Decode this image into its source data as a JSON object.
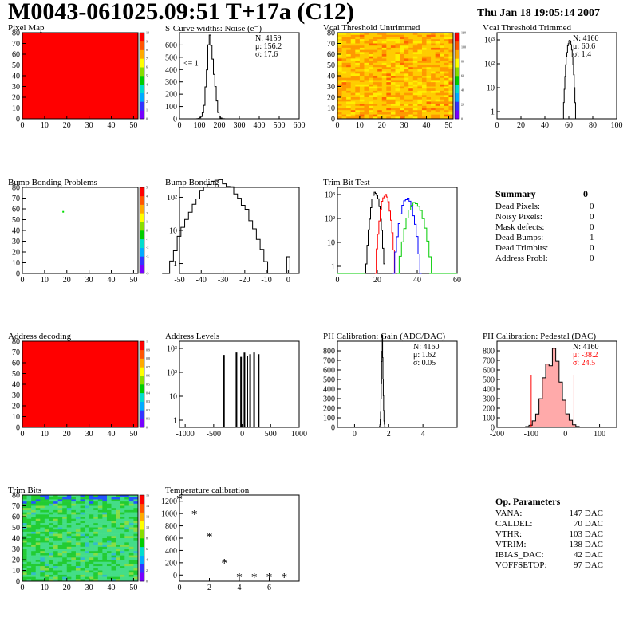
{
  "header": {
    "title": "M0043-061025.09:51 T+17a (C12)",
    "date": "Thu Jan 18 19:05:14 2007"
  },
  "colors": {
    "red": "#ff0000",
    "axis": "#000000",
    "green": "#00cc00",
    "blue": "#0000ff"
  },
  "chart_data": [
    {
      "id": "pixel-map",
      "type": "heatmap",
      "title": "Pixel Map",
      "xlim": [
        0,
        52
      ],
      "ylim": [
        0,
        80
      ],
      "xticks": [
        "0",
        "10",
        "20",
        "30",
        "40",
        "50"
      ],
      "yticks": [
        "0",
        "10",
        "20",
        "30",
        "40",
        "50",
        "60",
        "70",
        "80"
      ],
      "fill": "uniform",
      "value": 10,
      "zticks": [
        "0",
        "1",
        "2",
        "3",
        "4",
        "5",
        "6",
        "7",
        "8",
        "9",
        "10"
      ]
    },
    {
      "id": "s-curve",
      "type": "histogram",
      "title": "S-Curve widths: Noise (e⁻)",
      "xlim": [
        0,
        600
      ],
      "ylim": [
        0,
        700
      ],
      "xticks": [
        "0",
        "100",
        "200",
        "300",
        "400",
        "500",
        "600"
      ],
      "yticks": [
        "0",
        "100",
        "200",
        "300",
        "400",
        "500",
        "600"
      ],
      "stats": [
        "N: 4159",
        "μ: 156.2",
        "σ: 17.6"
      ],
      "annotation": "<= 1",
      "peak": {
        "center": 156,
        "sigma": 17.6,
        "height": 640
      }
    },
    {
      "id": "vcal-untrimmed",
      "type": "heatmap",
      "title": "Vcal Threshold Untrimmed",
      "xlim": [
        0,
        52
      ],
      "ylim": [
        0,
        80
      ],
      "xticks": [
        "0",
        "10",
        "20",
        "30",
        "40",
        "50"
      ],
      "yticks": [
        "0",
        "10",
        "20",
        "30",
        "40",
        "50",
        "60",
        "70",
        "80"
      ],
      "fill": "noisy-yellow-orange",
      "zticks": [
        "0",
        "20",
        "40",
        "60",
        "80",
        "100",
        "120"
      ]
    },
    {
      "id": "vcal-trimmed",
      "type": "histogram",
      "title": "Vcal Threshold Trimmed",
      "xlim": [
        0,
        100
      ],
      "log_y": true,
      "xticks": [
        "0",
        "20",
        "40",
        "60",
        "80",
        "100"
      ],
      "yticks": [
        "1",
        "10",
        "10²",
        "10³"
      ],
      "stats": [
        "N: 4160",
        "μ: 60.6",
        "σ: 1.4"
      ],
      "peak": {
        "center": 60.6,
        "sigma": 1.4,
        "height": 900
      }
    },
    {
      "id": "bump-problems",
      "type": "heatmap",
      "title": "Bump Bonding Problems",
      "xlim": [
        0,
        52
      ],
      "ylim": [
        0,
        80
      ],
      "xticks": [
        "0",
        "10",
        "20",
        "30",
        "40",
        "50"
      ],
      "yticks": [
        "0",
        "10",
        "20",
        "30",
        "40",
        "50",
        "60",
        "70",
        "80"
      ],
      "fill": "empty",
      "marker": [
        18,
        58
      ],
      "zticks": [
        "-5",
        "-4",
        "-3",
        "-2",
        "-1",
        "0",
        "1",
        "2",
        "3",
        "4",
        "5"
      ]
    },
    {
      "id": "bump-bonding",
      "type": "histogram",
      "title": "Bump Bonding",
      "xlim": [
        -50,
        5
      ],
      "log_y": true,
      "xticks": [
        "-50",
        "-40",
        "-30",
        "-20",
        "-10",
        "0"
      ],
      "yticks": [
        "1",
        "10",
        "10²"
      ],
      "peak": {
        "center": -32,
        "sigma": 6.5,
        "height": 300
      },
      "outlier": [
        0,
        1
      ]
    },
    {
      "id": "trim-bit-test",
      "type": "histogram",
      "title": "Trim Bit Test",
      "xlim": [
        0,
        60
      ],
      "log_y": true,
      "xticks": [
        "0",
        "20",
        "40",
        "60"
      ],
      "yticks": [
        "1",
        "10",
        "10²",
        "10³"
      ],
      "series": [
        {
          "center": 19,
          "sigma": 1.2,
          "height": 1300,
          "color": "#000000"
        },
        {
          "center": 24,
          "sigma": 1.3,
          "height": 1000,
          "color": "#ff0000"
        },
        {
          "center": 35,
          "sigma": 1.8,
          "height": 700,
          "color": "#0000ff"
        },
        {
          "center": 39,
          "sigma": 2.3,
          "height": 450,
          "color": "#00cc00"
        }
      ]
    },
    {
      "id": "address-decoding",
      "type": "heatmap",
      "title": "Address decoding",
      "xlim": [
        0,
        52
      ],
      "ylim": [
        0,
        80
      ],
      "xticks": [
        "0",
        "10",
        "20",
        "30",
        "40",
        "50"
      ],
      "yticks": [
        "0",
        "10",
        "20",
        "30",
        "40",
        "50",
        "60",
        "70",
        "80"
      ],
      "fill": "uniform",
      "value": 1,
      "zticks": [
        "0",
        "0.1",
        "0.2",
        "0.3",
        "0.4",
        "0.5",
        "0.6",
        "0.7",
        "0.8",
        "0.9",
        "1"
      ]
    },
    {
      "id": "address-levels",
      "type": "histogram",
      "title": "Address Levels",
      "xlim": [
        -1100,
        1000
      ],
      "log_y": true,
      "xticks": [
        "-1000",
        "-500",
        "0",
        "500",
        "1000"
      ],
      "yticks": [
        "1",
        "10",
        "10²",
        "10³"
      ],
      "spikes": [
        -320,
        -100,
        -20,
        40,
        90,
        140,
        210,
        290
      ],
      "spike_height": 600
    },
    {
      "id": "ph-gain",
      "type": "histogram",
      "title": "PH Calibration: Gain (ADC/DAC)",
      "xlim": [
        -1,
        6
      ],
      "ylim": [
        0,
        900
      ],
      "xticks": [
        "0",
        "2",
        "4"
      ],
      "yticks": [
        "0",
        "100",
        "200",
        "300",
        "400",
        "500",
        "600",
        "700",
        "800"
      ],
      "stats": [
        "N: 4160",
        "μ: 1.62",
        "σ: 0.05"
      ],
      "peak": {
        "center": 1.62,
        "sigma": 0.05,
        "height": 860
      }
    },
    {
      "id": "ph-pedestal",
      "type": "histogram",
      "title": "PH Calibration: Pedestal (DAC)",
      "xlim": [
        -200,
        150
      ],
      "ylim": [
        0,
        900
      ],
      "xticks": [
        "-200",
        "-100",
        "0",
        "100"
      ],
      "yticks": [
        "0",
        "100",
        "200",
        "300",
        "400",
        "500",
        "600",
        "700",
        "800"
      ],
      "stats": [
        "N: 4160",
        "μ: -38.2",
        "σ: 24.5"
      ],
      "peak": {
        "center": -38,
        "sigma": 24.5,
        "height": 760
      },
      "marks": [
        -100,
        25
      ]
    },
    {
      "id": "trim-bits",
      "type": "heatmap",
      "title": "Trim Bits",
      "xlim": [
        0,
        52
      ],
      "ylim": [
        0,
        80
      ],
      "xticks": [
        "0",
        "10",
        "20",
        "30",
        "40",
        "50"
      ],
      "yticks": [
        "0",
        "10",
        "20",
        "30",
        "40",
        "50",
        "60",
        "70",
        "80"
      ],
      "fill": "noisy-green",
      "zticks": [
        "0",
        "2",
        "4",
        "6",
        "8",
        "10",
        "12",
        "14",
        "16"
      ]
    },
    {
      "id": "temperature-calibration",
      "type": "scatter",
      "title": "Temperature calibration",
      "xlim": [
        0,
        8
      ],
      "ylim": [
        -100,
        1300
      ],
      "xticks": [
        "0",
        "2",
        "4",
        "6"
      ],
      "yticks": [
        "0",
        "200",
        "400",
        "600",
        "800",
        "1000",
        "1200"
      ],
      "x": [
        0,
        1,
        2,
        3,
        4,
        5,
        6,
        7
      ],
      "y": [
        1230,
        980,
        620,
        190,
        -40,
        -40,
        -40,
        -40
      ]
    }
  ],
  "summary": {
    "title": "Summary",
    "total": "0",
    "rows": [
      {
        "label": "Dead Pixels:",
        "value": "0"
      },
      {
        "label": "Noisy Pixels:",
        "value": "0"
      },
      {
        "label": "Mask defects:",
        "value": "0"
      },
      {
        "label": "Dead Bumps:",
        "value": "1"
      },
      {
        "label": "Dead Trimbits:",
        "value": "0"
      },
      {
        "label": "Address Probl:",
        "value": "0"
      }
    ]
  },
  "op_params": {
    "title": "Op. Parameters",
    "rows": [
      {
        "label": "VANA:",
        "value": "147 DAC"
      },
      {
        "label": "CALDEL:",
        "value": "70 DAC"
      },
      {
        "label": "VTHR:",
        "value": "103 DAC"
      },
      {
        "label": "VTRIM:",
        "value": "138 DAC"
      },
      {
        "label": "IBIAS_DAC:",
        "value": "42 DAC"
      },
      {
        "label": "VOFFSETOP:",
        "value": "97 DAC"
      }
    ]
  }
}
